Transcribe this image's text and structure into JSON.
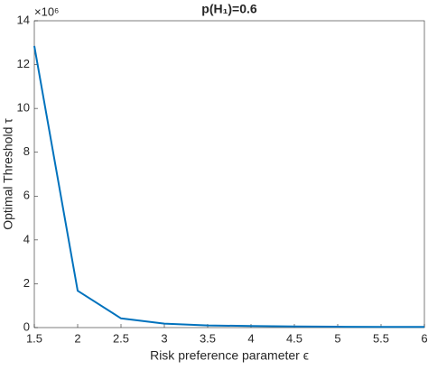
{
  "chart_data": {
    "type": "line",
    "title": "p(H₁)=0.6",
    "x_label": "Risk preference parameter ϵ",
    "y_label": "Optimal Threshold τ",
    "y_exponent_label": "×10⁶",
    "x": [
      1.5,
      2,
      2.5,
      3,
      3.5,
      4,
      4.5,
      5,
      5.5,
      6
    ],
    "series": [
      {
        "color": "#0072bd",
        "values": [
          12.85,
          1.68,
          0.42,
          0.18,
          0.1,
          0.07,
          0.05,
          0.04,
          0.03,
          0.03
        ]
      }
    ],
    "xlim": [
      1.5,
      6
    ],
    "xticks": [
      1.5,
      2,
      2.5,
      3,
      3.5,
      4,
      4.5,
      5,
      5.5,
      6
    ],
    "ylim": [
      0,
      14
    ],
    "yticks": [
      0,
      2,
      4,
      6,
      8,
      10,
      12,
      14
    ]
  }
}
